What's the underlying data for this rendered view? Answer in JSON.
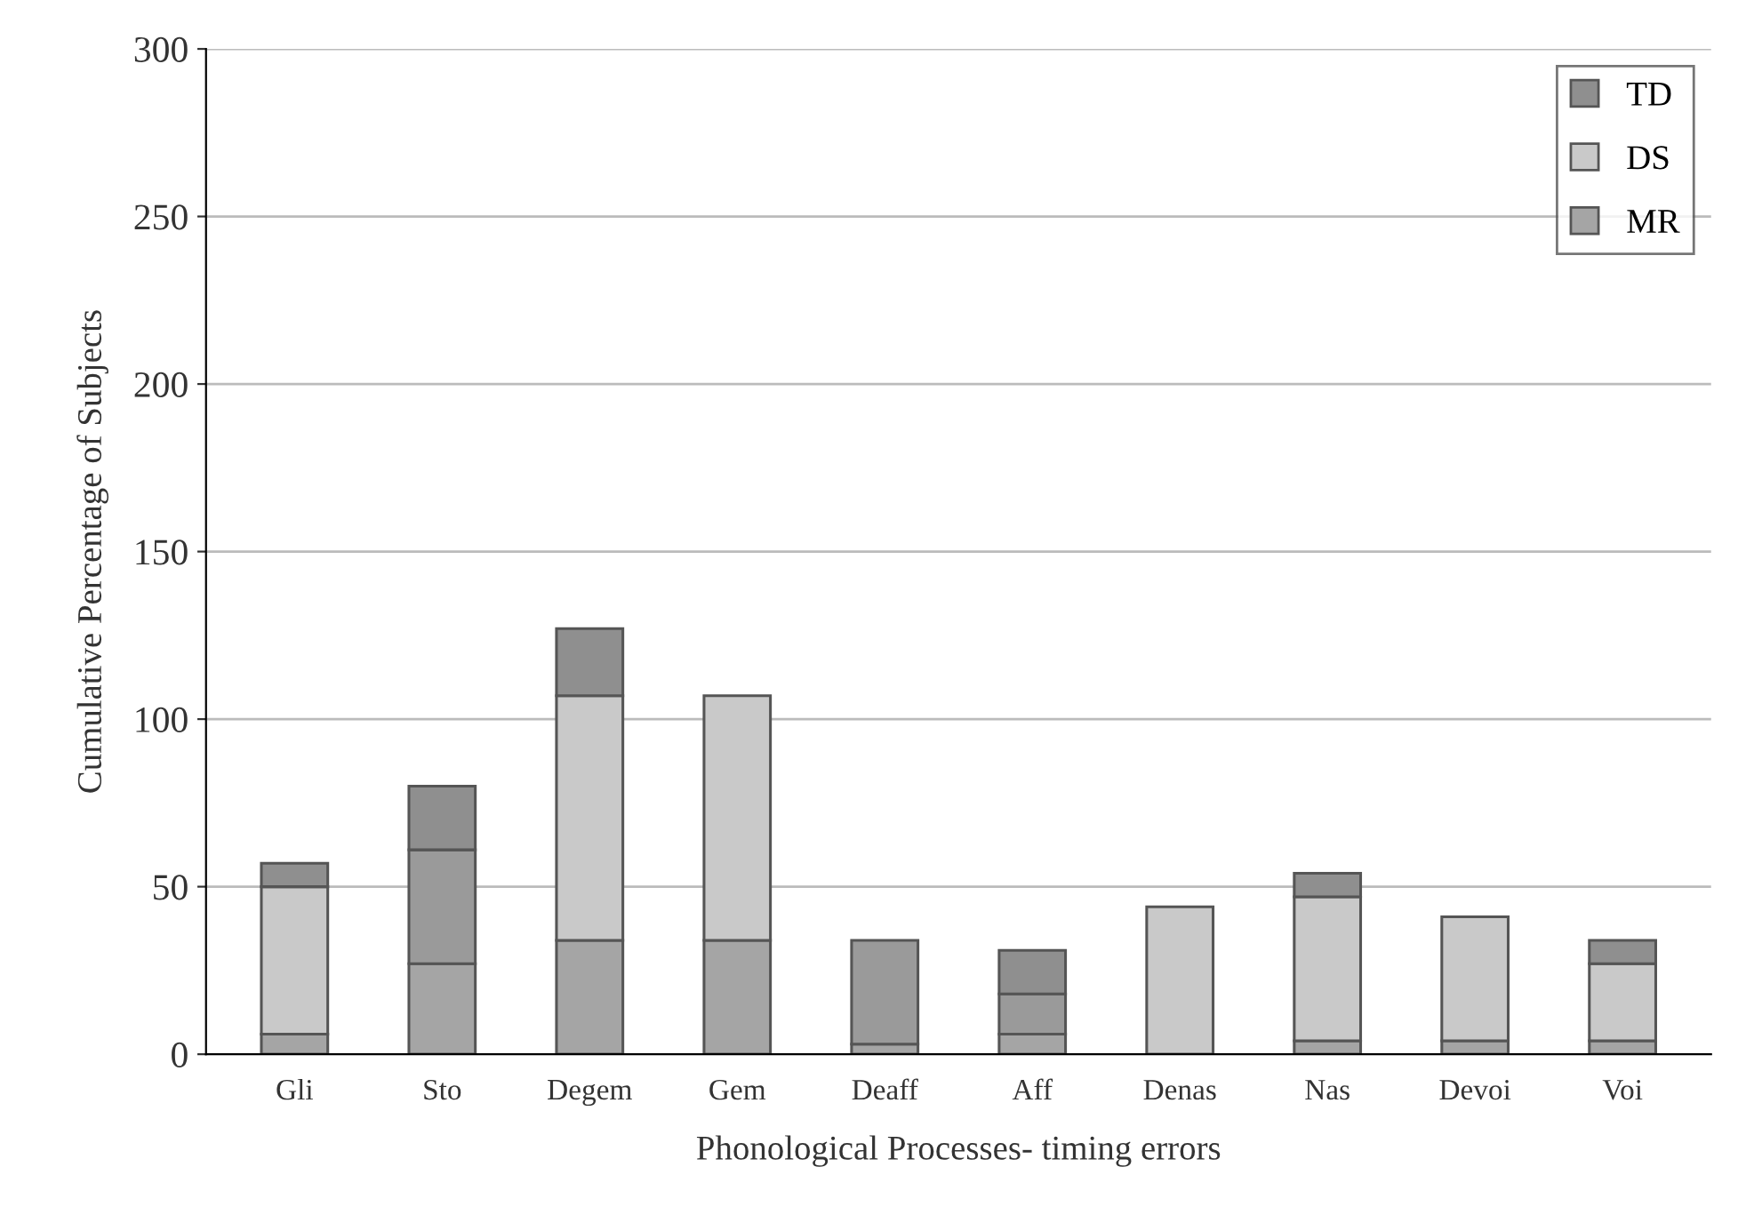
{
  "chart_data": {
    "type": "bar",
    "stacked": true,
    "xlabel": "Phonological Processes- timing errors",
    "ylabel": "Cumulative Percentage of Subjects",
    "categories": [
      "Gli",
      "Sto",
      "Degem",
      "Gem",
      "Deaff",
      "Aff",
      "Denas",
      "Nas",
      "Devoi",
      "Voi"
    ],
    "series": [
      {
        "name": "MR",
        "color": "#a5a5a5",
        "values": [
          6,
          27,
          34,
          34,
          3,
          6,
          null,
          4,
          4,
          4
        ]
      },
      {
        "name": "DS",
        "color": "#c9c9c9",
        "colors": [
          "#c9c9c9",
          "#9a9a9a",
          "#c9c9c9",
          "#c9c9c9",
          "#9a9a9a",
          "#9a9a9a",
          "#c9c9c9",
          "#c9c9c9",
          "#c9c9c9",
          "#c9c9c9"
        ],
        "values": [
          44,
          34,
          73,
          73,
          31,
          12,
          44,
          43,
          37,
          23
        ]
      },
      {
        "name": "TD",
        "color": "#8f8f8f",
        "values": [
          7,
          19,
          20,
          null,
          null,
          13,
          null,
          7,
          null,
          7
        ]
      }
    ],
    "ylim": [
      0,
      300
    ],
    "yticks": [
      0,
      50,
      100,
      150,
      200,
      250,
      300
    ],
    "grid": "y",
    "legend": "top right"
  }
}
